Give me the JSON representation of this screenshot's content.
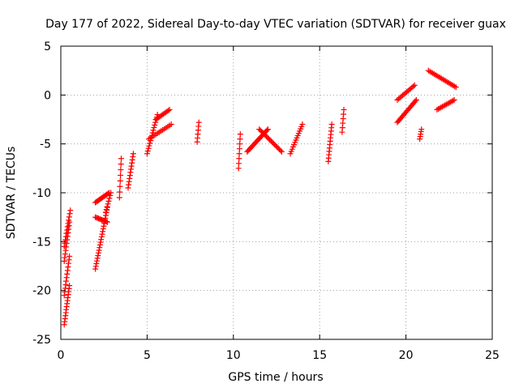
{
  "chart_data": {
    "type": "scatter",
    "title": "Day 177 of 2022, Sidereal Day-to-day VTEC variation (SDTVAR) for receiver guax",
    "xlabel": "GPS time / hours",
    "ylabel": "SDTVAR / TECUs",
    "xlim": [
      0,
      25
    ],
    "ylim": [
      -25,
      5
    ],
    "xticks": [
      0,
      5,
      10,
      15,
      20,
      25
    ],
    "yticks": [
      -25,
      -20,
      -15,
      -10,
      -5,
      0,
      5
    ],
    "grid": true,
    "marker": "+",
    "colors": {
      "series": "#ff0000",
      "grid": "#a0a0a0",
      "axis": "#000000"
    },
    "series": [
      {
        "name": "SDTVAR",
        "segments": [
          {
            "x0": 0.2,
            "x1": 0.5,
            "y0": -23.5,
            "y1": -19.5,
            "n": 14
          },
          {
            "x0": 0.2,
            "x1": 0.5,
            "y0": -20.5,
            "y1": -16.5,
            "n": 12
          },
          {
            "x0": 0.2,
            "x1": 0.5,
            "y0": -17.0,
            "y1": -13.0,
            "n": 12
          },
          {
            "x0": 0.2,
            "x1": 0.55,
            "y0": -15.5,
            "y1": -11.8,
            "n": 12
          },
          {
            "x0": 2.0,
            "x1": 2.7,
            "y0": -17.8,
            "y1": -11.5,
            "n": 24
          },
          {
            "x0": 2.0,
            "x1": 2.7,
            "y0": -12.5,
            "y1": -13.0,
            "n": 12
          },
          {
            "x0": 2.0,
            "x1": 2.8,
            "y0": -11.0,
            "y1": -10.0,
            "n": 14
          },
          {
            "x0": 2.6,
            "x1": 2.9,
            "y0": -12.0,
            "y1": -10.0,
            "n": 8
          },
          {
            "x0": 3.4,
            "x1": 3.5,
            "y0": -10.5,
            "y1": -6.5,
            "n": 8
          },
          {
            "x0": 3.9,
            "x1": 4.2,
            "y0": -9.5,
            "y1": -6.0,
            "n": 12
          },
          {
            "x0": 5.0,
            "x1": 5.6,
            "y0": -6.0,
            "y1": -2.0,
            "n": 16
          },
          {
            "x0": 5.1,
            "x1": 6.4,
            "y0": -4.5,
            "y1": -3.0,
            "n": 14
          },
          {
            "x0": 5.5,
            "x1": 6.3,
            "y0": -2.5,
            "y1": -1.5,
            "n": 12
          },
          {
            "x0": 7.9,
            "x1": 8.0,
            "y0": -4.8,
            "y1": -2.8,
            "n": 6
          },
          {
            "x0": 10.3,
            "x1": 10.4,
            "y0": -7.5,
            "y1": -4.0,
            "n": 8
          },
          {
            "x0": 10.8,
            "x1": 12.0,
            "y0": -5.8,
            "y1": -3.5,
            "n": 22
          },
          {
            "x0": 11.5,
            "x1": 12.8,
            "y0": -3.5,
            "y1": -5.8,
            "n": 20
          },
          {
            "x0": 13.3,
            "x1": 14.0,
            "y0": -6.0,
            "y1": -3.0,
            "n": 14
          },
          {
            "x0": 15.5,
            "x1": 15.7,
            "y0": -6.8,
            "y1": -3.0,
            "n": 12
          },
          {
            "x0": 16.3,
            "x1": 16.4,
            "y0": -3.8,
            "y1": -1.5,
            "n": 6
          },
          {
            "x0": 19.5,
            "x1": 20.6,
            "y0": -2.8,
            "y1": -0.5,
            "n": 20
          },
          {
            "x0": 19.5,
            "x1": 20.5,
            "y0": -0.5,
            "y1": 1.0,
            "n": 14
          },
          {
            "x0": 20.8,
            "x1": 20.9,
            "y0": -4.5,
            "y1": -3.5,
            "n": 5
          },
          {
            "x0": 21.3,
            "x1": 22.9,
            "y0": 2.5,
            "y1": 0.8,
            "n": 20
          },
          {
            "x0": 21.8,
            "x1": 22.8,
            "y0": -1.5,
            "y1": -0.5,
            "n": 14
          }
        ]
      }
    ]
  }
}
